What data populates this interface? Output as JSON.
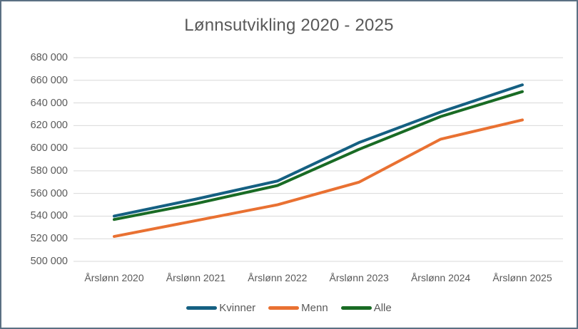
{
  "frame": {
    "border_color": "#5b7083",
    "background_color": "#ffffff"
  },
  "chart_data": {
    "type": "line",
    "title": "Lønnsutvikling 2020 - 2025",
    "categories": [
      "Årslønn 2020",
      "Årslønn 2021",
      "Årslønn 2022",
      "Årslønn 2023",
      "Årslønn 2024",
      "Årslønn 2025"
    ],
    "series": [
      {
        "name": "Kvinner",
        "color": "#156082",
        "values": [
          540000,
          555000,
          571000,
          605000,
          632000,
          656000
        ]
      },
      {
        "name": "Menn",
        "color": "#E97132",
        "values": [
          522000,
          536000,
          550000,
          570000,
          608000,
          625000
        ]
      },
      {
        "name": "Alle",
        "color": "#196B24",
        "values": [
          537000,
          551000,
          567000,
          599000,
          628000,
          650000
        ]
      }
    ],
    "ylim": [
      500000,
      680000
    ],
    "ytick_step": 20000,
    "ytick_labels": [
      "500 000",
      "520 000",
      "540 000",
      "560 000",
      "580 000",
      "600 000",
      "620 000",
      "640 000",
      "660 000",
      "680 000"
    ],
    "grid": true,
    "legend_position": "bottom",
    "legend_order": [
      "Kvinner",
      "Menn",
      "Alle"
    ],
    "text_color": "#595959",
    "gridline_color": "#D9D9D9",
    "line_width": 4
  }
}
